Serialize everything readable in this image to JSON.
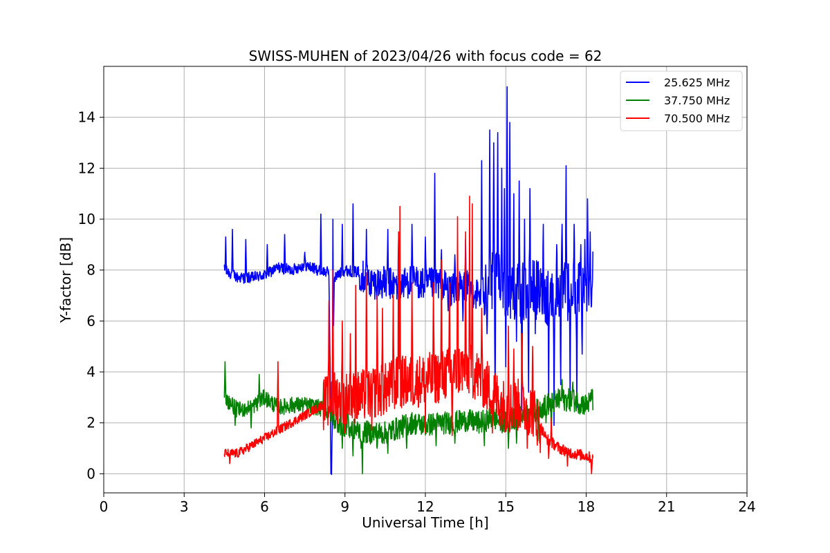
{
  "chart_data": {
    "type": "line",
    "title": "SWISS-MUHEN of 2023/04/26 with focus code = 62",
    "xlabel": "Universal Time [h]",
    "ylabel": "Y-factor [dB]",
    "xlim": [
      0,
      24
    ],
    "ylim": [
      -0.75,
      16
    ],
    "xticks": [
      0,
      3,
      6,
      9,
      12,
      15,
      18,
      21,
      24
    ],
    "yticks": [
      0,
      2,
      4,
      6,
      8,
      10,
      12,
      14
    ],
    "grid": true,
    "legend_position": "top-right",
    "x_range": [
      4.5,
      18.25
    ],
    "series": [
      {
        "name": "25.625 MHz",
        "color": "#0000ff",
        "points": [
          [
            4.5,
            8.0
          ],
          [
            5.0,
            7.7
          ],
          [
            5.5,
            7.7
          ],
          [
            6.0,
            7.8
          ],
          [
            6.5,
            8.1
          ],
          [
            7.0,
            8.0
          ],
          [
            7.5,
            8.2
          ],
          [
            8.0,
            8.0
          ],
          [
            8.4,
            7.9
          ],
          [
            8.5,
            0.0
          ],
          [
            8.6,
            7.7
          ],
          [
            9.0,
            8.0
          ],
          [
            9.5,
            7.9
          ],
          [
            10.0,
            7.5
          ],
          [
            10.5,
            7.5
          ],
          [
            11.0,
            7.4
          ],
          [
            11.5,
            7.6
          ],
          [
            12.0,
            7.4
          ],
          [
            12.5,
            7.5
          ],
          [
            13.0,
            7.2
          ],
          [
            13.5,
            7.4
          ],
          [
            14.0,
            7.0
          ],
          [
            14.5,
            7.5
          ],
          [
            15.0,
            7.4
          ],
          [
            15.5,
            7.0
          ],
          [
            16.0,
            7.3
          ],
          [
            16.5,
            7.0
          ],
          [
            17.0,
            7.2
          ],
          [
            17.5,
            7.1
          ],
          [
            18.0,
            7.5
          ],
          [
            18.25,
            7.8
          ]
        ],
        "peaks": [
          [
            4.55,
            9.3
          ],
          [
            4.8,
            9.6
          ],
          [
            5.3,
            9.2
          ],
          [
            6.1,
            9.0
          ],
          [
            6.75,
            9.4
          ],
          [
            7.5,
            8.7
          ],
          [
            8.1,
            10.2
          ],
          [
            8.55,
            10.0
          ],
          [
            8.9,
            9.8
          ],
          [
            9.3,
            10.6
          ],
          [
            9.8,
            9.6
          ],
          [
            10.6,
            9.6
          ],
          [
            11.0,
            9.2
          ],
          [
            11.5,
            9.8
          ],
          [
            12.0,
            9.3
          ],
          [
            12.35,
            11.8
          ],
          [
            12.6,
            8.8
          ],
          [
            13.1,
            8.6
          ],
          [
            13.5,
            9.2
          ],
          [
            14.1,
            12.3
          ],
          [
            14.25,
            8.2
          ],
          [
            14.4,
            13.5
          ],
          [
            14.55,
            13.0
          ],
          [
            14.7,
            13.4
          ],
          [
            14.85,
            12.0
          ],
          [
            14.95,
            11.2
          ],
          [
            15.05,
            15.2
          ],
          [
            15.15,
            13.8
          ],
          [
            15.3,
            11.0
          ],
          [
            15.5,
            11.5
          ],
          [
            15.7,
            10.0
          ],
          [
            15.9,
            11.2
          ],
          [
            16.1,
            11.0
          ],
          [
            16.4,
            9.8
          ],
          [
            16.6,
            10.2
          ],
          [
            16.9,
            9.0
          ],
          [
            17.1,
            9.8
          ],
          [
            17.25,
            12.1
          ],
          [
            17.55,
            9.8
          ],
          [
            17.8,
            9.0
          ],
          [
            17.95,
            9.2
          ],
          [
            18.05,
            10.8
          ],
          [
            18.15,
            9.5
          ]
        ],
        "dips": [
          [
            8.48,
            0.0
          ],
          [
            12.85,
            6.4
          ],
          [
            13.4,
            6.0
          ],
          [
            14.3,
            5.5
          ],
          [
            14.6,
            3.0
          ],
          [
            15.0,
            4.2
          ],
          [
            15.4,
            5.2
          ],
          [
            15.6,
            2.5
          ],
          [
            15.85,
            3.2
          ],
          [
            16.1,
            5.5
          ],
          [
            16.6,
            2.5
          ],
          [
            16.8,
            1.9
          ],
          [
            17.05,
            3.5
          ],
          [
            17.4,
            2.8
          ],
          [
            17.65,
            2.6
          ],
          [
            17.85,
            4.7
          ]
        ]
      },
      {
        "name": "37.750 MHz",
        "color": "#008000",
        "points": [
          [
            4.5,
            3.0
          ],
          [
            5.0,
            2.5
          ],
          [
            5.5,
            2.6
          ],
          [
            6.0,
            3.0
          ],
          [
            6.5,
            2.6
          ],
          [
            7.0,
            2.7
          ],
          [
            7.5,
            2.7
          ],
          [
            8.0,
            2.6
          ],
          [
            8.5,
            2.3
          ],
          [
            9.0,
            1.8
          ],
          [
            9.5,
            1.7
          ],
          [
            10.0,
            1.6
          ],
          [
            10.5,
            1.6
          ],
          [
            11.0,
            1.8
          ],
          [
            11.5,
            2.0
          ],
          [
            12.0,
            1.9
          ],
          [
            12.5,
            2.0
          ],
          [
            13.0,
            2.0
          ],
          [
            13.5,
            2.1
          ],
          [
            14.0,
            2.0
          ],
          [
            14.5,
            2.2
          ],
          [
            15.0,
            2.0
          ],
          [
            15.5,
            2.3
          ],
          [
            16.0,
            2.4
          ],
          [
            16.5,
            2.7
          ],
          [
            17.0,
            2.9
          ],
          [
            17.5,
            2.9
          ],
          [
            18.0,
            2.7
          ],
          [
            18.25,
            2.9
          ]
        ],
        "peaks": [
          [
            4.52,
            4.4
          ],
          [
            5.8,
            3.9
          ],
          [
            6.5,
            3.9
          ],
          [
            8.2,
            3.6
          ],
          [
            9.1,
            3.0
          ],
          [
            17.1,
            3.7
          ],
          [
            17.5,
            3.6
          ],
          [
            18.2,
            3.3
          ]
        ],
        "dips": [
          [
            4.9,
            1.9
          ],
          [
            5.5,
            1.8
          ],
          [
            8.9,
            1.0
          ],
          [
            9.3,
            0.7
          ],
          [
            9.6,
            1.0
          ],
          [
            9.65,
            0.0
          ],
          [
            10.2,
            1.0
          ],
          [
            10.6,
            0.8
          ],
          [
            11.3,
            1.0
          ],
          [
            12.4,
            1.1
          ],
          [
            13.1,
            1.2
          ],
          [
            14.2,
            1.1
          ],
          [
            15.1,
            1.0
          ],
          [
            15.4,
            1.2
          ],
          [
            16.2,
            1.3
          ],
          [
            16.5,
            2.0
          ],
          [
            16.7,
            1.6
          ]
        ]
      },
      {
        "name": "70.500 MHz",
        "color": "#ff0000",
        "points": [
          [
            4.5,
            0.8
          ],
          [
            5.0,
            0.8
          ],
          [
            5.5,
            1.1
          ],
          [
            6.0,
            1.4
          ],
          [
            6.5,
            1.7
          ],
          [
            7.0,
            2.0
          ],
          [
            7.5,
            2.3
          ],
          [
            8.0,
            2.6
          ],
          [
            8.5,
            3.0
          ],
          [
            9.0,
            3.0
          ],
          [
            9.5,
            3.0
          ],
          [
            10.0,
            3.2
          ],
          [
            10.5,
            3.3
          ],
          [
            11.0,
            3.6
          ],
          [
            11.5,
            3.6
          ],
          [
            12.0,
            3.7
          ],
          [
            12.5,
            3.8
          ],
          [
            13.0,
            4.0
          ],
          [
            13.5,
            4.2
          ],
          [
            14.0,
            3.8
          ],
          [
            14.5,
            3.2
          ],
          [
            15.0,
            2.6
          ],
          [
            15.5,
            2.7
          ],
          [
            16.0,
            2.5
          ],
          [
            16.5,
            1.4
          ],
          [
            17.0,
            1.0
          ],
          [
            17.5,
            0.8
          ],
          [
            18.0,
            0.7
          ],
          [
            18.25,
            0.6
          ]
        ],
        "peaks": [
          [
            6.5,
            4.4
          ],
          [
            8.4,
            6.8
          ],
          [
            8.55,
            8.0
          ],
          [
            8.9,
            6.0
          ],
          [
            9.2,
            5.5
          ],
          [
            9.4,
            7.4
          ],
          [
            9.8,
            7.9
          ],
          [
            10.2,
            7.0
          ],
          [
            10.4,
            6.5
          ],
          [
            10.8,
            7.0
          ],
          [
            11.0,
            9.5
          ],
          [
            11.05,
            10.5
          ],
          [
            11.5,
            7.5
          ],
          [
            12.0,
            6.8
          ],
          [
            12.3,
            7.5
          ],
          [
            12.6,
            8.4
          ],
          [
            12.9,
            7.5
          ],
          [
            13.2,
            10.1
          ],
          [
            13.5,
            9.5
          ],
          [
            13.65,
            10.9
          ],
          [
            13.75,
            10.6
          ],
          [
            14.1,
            6.5
          ],
          [
            14.5,
            5.0
          ],
          [
            15.1,
            5.8
          ],
          [
            15.3,
            4.9
          ],
          [
            15.6,
            5.5
          ],
          [
            16.0,
            5.0
          ],
          [
            16.7,
            2.2
          ]
        ],
        "dips": [
          [
            4.7,
            0.4
          ],
          [
            9.0,
            1.6
          ],
          [
            10.0,
            1.7
          ],
          [
            12.0,
            1.6
          ],
          [
            13.0,
            1.5
          ],
          [
            14.5,
            1.6
          ],
          [
            15.8,
            1.0
          ],
          [
            16.6,
            0.6
          ],
          [
            17.3,
            0.3
          ],
          [
            18.2,
            0.0
          ]
        ]
      }
    ]
  }
}
